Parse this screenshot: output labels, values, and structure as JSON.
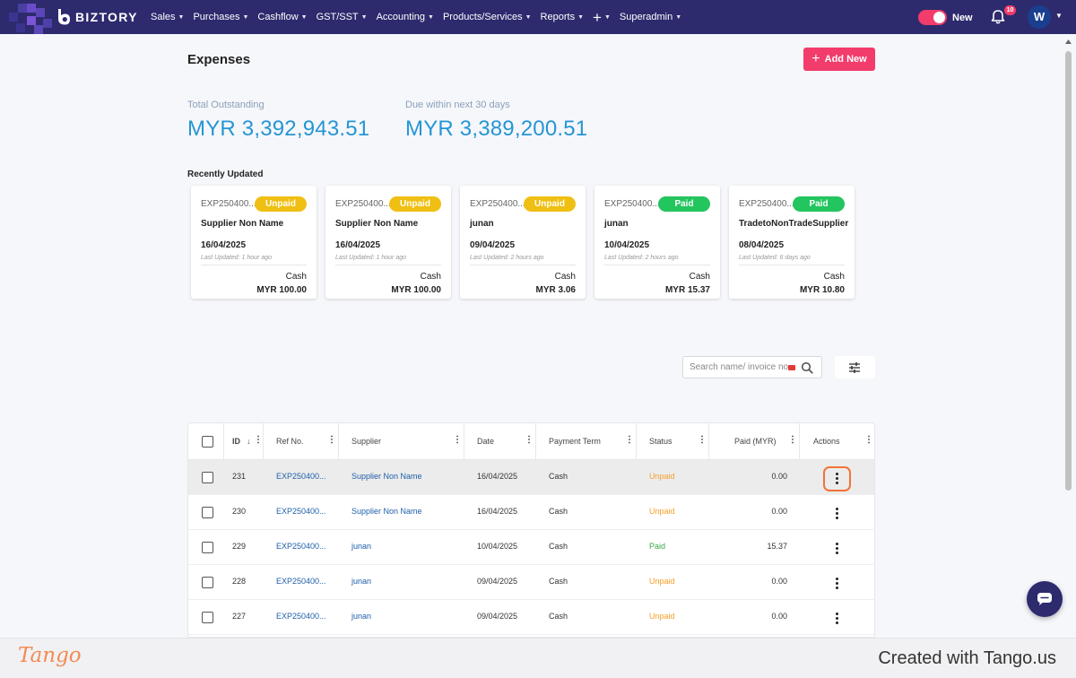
{
  "colors": {
    "navbar": "#2d2a6e",
    "accent_pink": "#f23c6b",
    "stat_blue": "#2496d3",
    "unpaid_badge": "#f0bf13",
    "paid_badge": "#22c55e",
    "unpaid_text": "#f59f2a",
    "paid_text": "#3aa84a",
    "link_blue": "#1f5fa9",
    "focus_outline": "#f37335"
  },
  "navbar": {
    "logo_text": "BIZTORY",
    "menu": [
      {
        "label": "Sales",
        "icon": "caret-down-icon"
      },
      {
        "label": "Purchases",
        "icon": "caret-down-icon"
      },
      {
        "label": "Cashflow",
        "icon": "caret-down-icon"
      },
      {
        "label": "GST/SST",
        "icon": "caret-down-icon"
      },
      {
        "label": "Accounting",
        "icon": "caret-down-icon"
      },
      {
        "label": "Products/Services",
        "icon": "caret-down-icon"
      },
      {
        "label": "Reports",
        "icon": "caret-down-icon"
      },
      {
        "label": "Superadmin",
        "icon": "caret-down-icon"
      }
    ],
    "plus_symbol": "+",
    "toggle_label": "New",
    "notification_count": "10",
    "avatar_initial": "W"
  },
  "page": {
    "title": "Expenses",
    "add_button_label": "Add New",
    "stats": [
      {
        "label": "Total Outstanding",
        "value": "MYR 3,392,943.51"
      },
      {
        "label": "Due within next 30 days",
        "value": "MYR 3,389,200.51"
      }
    ],
    "recent_label": "Recently Updated",
    "recent_cards": [
      {
        "ref": "EXP250400...",
        "status": "Unpaid",
        "name": "Supplier Non Name",
        "date": "16/04/2025",
        "updated": "Last Updated: 1 hour ago",
        "payment": "Cash",
        "amount": "MYR 100.00"
      },
      {
        "ref": "EXP250400...",
        "status": "Unpaid",
        "name": "Supplier Non Name",
        "date": "16/04/2025",
        "updated": "Last Updated: 1 hour ago",
        "payment": "Cash",
        "amount": "MYR 100.00"
      },
      {
        "ref": "EXP250400...",
        "status": "Unpaid",
        "name": "junan",
        "date": "09/04/2025",
        "updated": "Last Updated: 2 hours ago",
        "payment": "Cash",
        "amount": "MYR 3.06"
      },
      {
        "ref": "EXP250400...",
        "status": "Paid",
        "name": "junan",
        "date": "10/04/2025",
        "updated": "Last Updated: 2 hours ago",
        "payment": "Cash",
        "amount": "MYR 15.37"
      },
      {
        "ref": "EXP250400...",
        "status": "Paid",
        "name": "TradetoNonTradeSupplier",
        "date": "08/04/2025",
        "updated": "Last Updated: 6 days ago",
        "payment": "Cash",
        "amount": "MYR 10.80"
      }
    ],
    "search_placeholder": "Search name/ invoice no.",
    "table": {
      "columns": [
        "ID",
        "Ref No.",
        "Supplier",
        "Date",
        "Payment Term",
        "Status",
        "Paid (MYR)",
        "Actions"
      ],
      "rows": [
        {
          "id": "231",
          "ref": "EXP250400...",
          "supplier": "Supplier Non Name",
          "date": "16/04/2025",
          "term": "Cash",
          "status": "Unpaid",
          "paid": "0.00"
        },
        {
          "id": "230",
          "ref": "EXP250400...",
          "supplier": "Supplier Non Name",
          "date": "16/04/2025",
          "term": "Cash",
          "status": "Unpaid",
          "paid": "0.00"
        },
        {
          "id": "229",
          "ref": "EXP250400...",
          "supplier": "junan",
          "date": "10/04/2025",
          "term": "Cash",
          "status": "Paid",
          "paid": "15.37"
        },
        {
          "id": "228",
          "ref": "EXP250400...",
          "supplier": "junan",
          "date": "09/04/2025",
          "term": "Cash",
          "status": "Unpaid",
          "paid": "0.00"
        },
        {
          "id": "227",
          "ref": "EXP250400...",
          "supplier": "junan",
          "date": "09/04/2025",
          "term": "Cash",
          "status": "Unpaid",
          "paid": "0.00"
        }
      ]
    }
  },
  "footer": {
    "brand": "Tango",
    "created_text": "Created with Tango.us"
  }
}
